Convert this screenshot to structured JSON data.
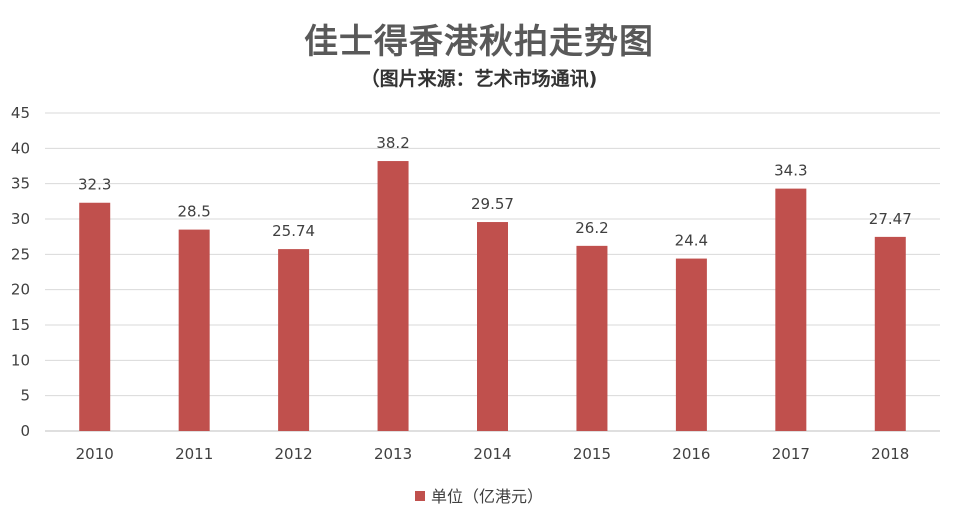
{
  "chart_data": {
    "type": "bar",
    "title": "佳士得香港秋拍走势图",
    "subtitle": "（图片来源：艺术市场通讯)",
    "categories": [
      "2010",
      "2011",
      "2012",
      "2013",
      "2014",
      "2015",
      "2016",
      "2017",
      "2018"
    ],
    "series": [
      {
        "name": "单位（亿港元）",
        "values": [
          32.3,
          28.5,
          25.74,
          38.2,
          29.57,
          26.2,
          24.4,
          34.3,
          27.47
        ],
        "labels": [
          "32.3",
          "28.5",
          "25.74",
          "38.2",
          "29.57",
          "26.2",
          "24.4",
          "34.3",
          "27.47"
        ],
        "color": "#c0504d"
      }
    ],
    "y_ticks": [
      "0",
      "5",
      "10",
      "15",
      "20",
      "25",
      "30",
      "35",
      "40",
      "45"
    ],
    "ylim": [
      0,
      45
    ],
    "grid": true,
    "legend_position": "bottom"
  }
}
